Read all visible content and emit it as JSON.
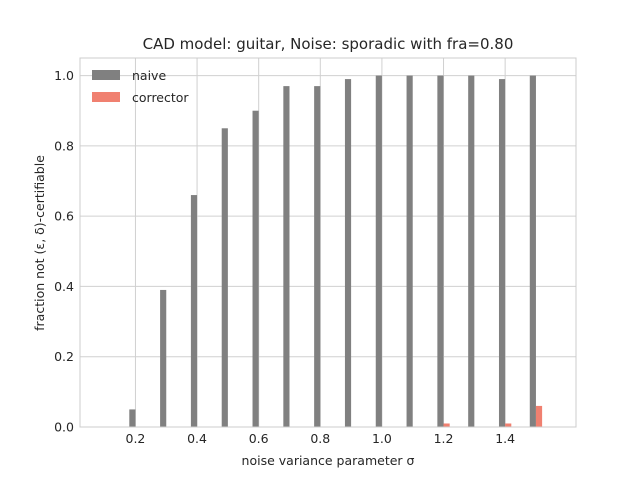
{
  "chart_data": {
    "type": "bar",
    "title": "CAD model: guitar, Noise: sporadic with fra=0.80",
    "xlabel": "noise variance parameter σ",
    "ylabel": "fraction not (ε, δ)-certifiable",
    "xlim": [
      0.02,
      1.63
    ],
    "ylim": [
      0.0,
      1.05
    ],
    "xticks": [
      "0.2",
      "0.4",
      "0.6",
      "0.8",
      "1.0",
      "1.2",
      "1.4"
    ],
    "yticks": [
      "0.0",
      "0.2",
      "0.4",
      "0.6",
      "0.8",
      "1.0"
    ],
    "x": [
      0.1,
      0.2,
      0.3,
      0.4,
      0.5,
      0.6,
      0.7,
      0.8,
      0.9,
      1.0,
      1.1,
      1.2,
      1.3,
      1.4,
      1.5
    ],
    "legend_position": "top-left",
    "grid": true,
    "series": [
      {
        "name": "naive",
        "color": "#808080",
        "values": [
          0.0,
          0.05,
          0.39,
          0.66,
          0.85,
          0.9,
          0.97,
          0.97,
          0.99,
          1.0,
          1.0,
          1.0,
          1.0,
          0.99,
          1.0
        ]
      },
      {
        "name": "corrector",
        "color": "#f08070",
        "values": [
          0.0,
          0.0,
          0.0,
          0.0,
          0.0,
          0.0,
          0.0,
          0.0,
          0.0,
          0.0,
          0.0,
          0.01,
          0.0,
          0.01,
          0.06
        ]
      }
    ]
  }
}
